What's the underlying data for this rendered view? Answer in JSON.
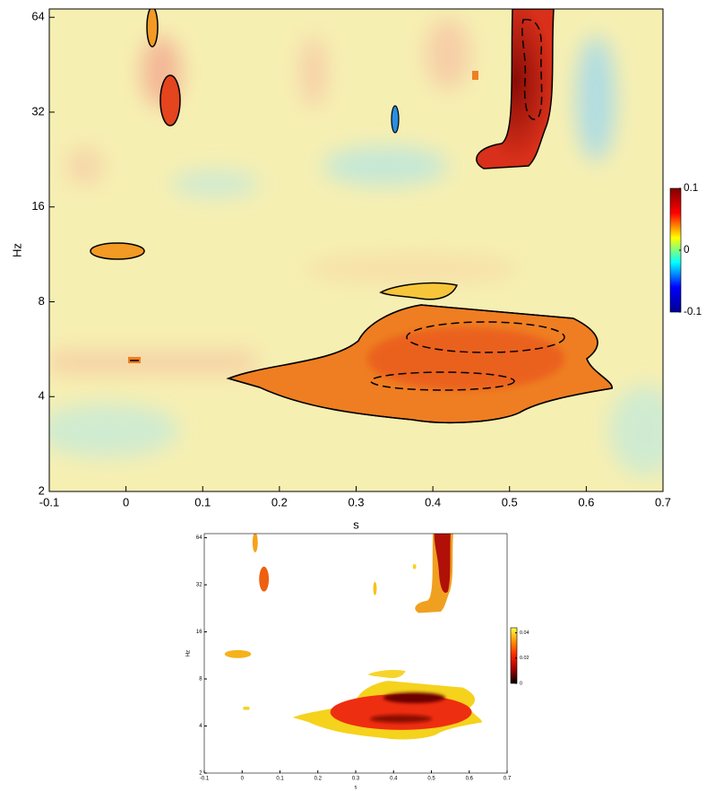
{
  "chart_data": [
    {
      "type": "heatmap",
      "xlabel": "s",
      "ylabel": "Hz",
      "colormap": "jet",
      "ylog_base": 2,
      "xlim": [
        -0.1,
        0.7
      ],
      "xticks": [
        -0.1,
        0,
        0.1,
        0.2,
        0.3,
        0.4,
        0.5,
        0.6,
        0.7
      ],
      "ylim": [
        2,
        68
      ],
      "yticks": [
        2,
        4,
        8,
        16,
        32,
        64
      ],
      "clim": [
        -0.1,
        0.1
      ],
      "cticks": [
        -0.1,
        0,
        0.1
      ]
    },
    {
      "type": "heatmap",
      "xlabel": "s",
      "ylabel": "Hz",
      "colormap": "hot",
      "ylog_base": 2,
      "xlim": [
        -0.1,
        0.7
      ],
      "xticks": [
        -0.1,
        0,
        0.1,
        0.2,
        0.3,
        0.4,
        0.5,
        0.6,
        0.7
      ],
      "ylim": [
        2,
        68
      ],
      "yticks": [
        2,
        4,
        8,
        16,
        32,
        64
      ],
      "clim": [
        0,
        0.044
      ],
      "cticks": [
        0,
        0.02,
        0.04
      ]
    }
  ]
}
